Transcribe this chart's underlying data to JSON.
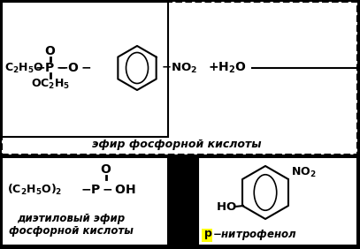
{
  "bg_color": "#000000",
  "white": "#ffffff",
  "yellow": "#ffff00",
  "black": "#000000",
  "label_ether": "эфир фосфорной кислоты",
  "label_diethyl_line1": "диэтиловый эфир",
  "label_diethyl_line2": "фосфорной кислоты",
  "label_nitrophenol_suffix": "нитрофенол"
}
